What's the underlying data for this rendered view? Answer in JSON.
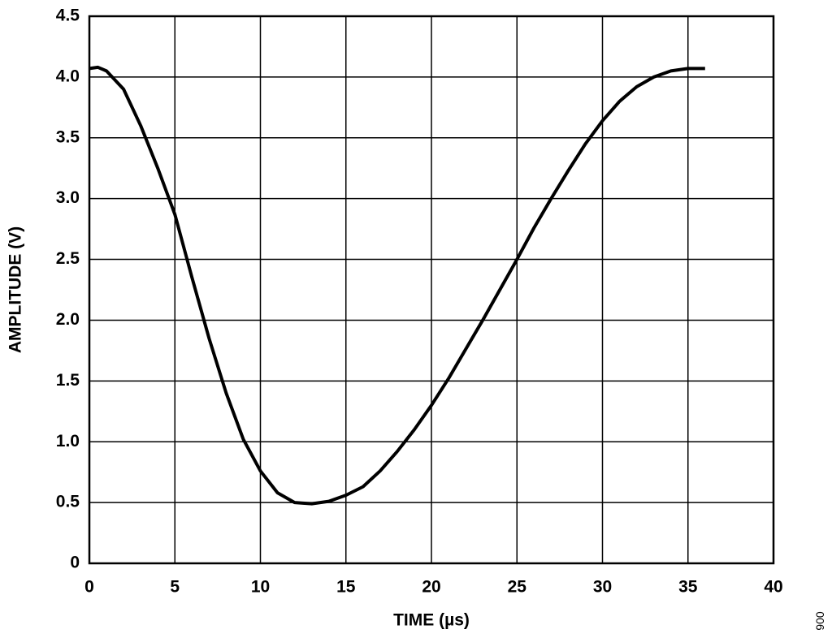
{
  "chart_data": {
    "type": "line",
    "xlabel": "TIME (µs)",
    "ylabel": "AMPLITUDE (V)",
    "figure_id": "006",
    "x": [
      0,
      0.5,
      1,
      2,
      3,
      4,
      5,
      6,
      7,
      8,
      9,
      10,
      11,
      12,
      13,
      14,
      15,
      16,
      17,
      18,
      19,
      20,
      21,
      22,
      23,
      24,
      25,
      26,
      27,
      28,
      29,
      30,
      31,
      32,
      33,
      34,
      35,
      36
    ],
    "series": [
      {
        "color": "#000000",
        "values": [
          4.07,
          4.08,
          4.05,
          3.9,
          3.6,
          3.25,
          2.87,
          2.35,
          1.85,
          1.4,
          1.02,
          0.76,
          0.58,
          0.5,
          0.49,
          0.51,
          0.56,
          0.63,
          0.76,
          0.92,
          1.1,
          1.3,
          1.52,
          1.76,
          2.0,
          2.25,
          2.5,
          2.76,
          3.0,
          3.23,
          3.45,
          3.64,
          3.8,
          3.92,
          4.0,
          4.05,
          4.07,
          4.07
        ]
      }
    ],
    "xlim": [
      0,
      40
    ],
    "xticks": [
      0,
      5,
      10,
      15,
      20,
      25,
      30,
      35,
      40
    ],
    "ylim": [
      0,
      4.5
    ],
    "yticks": [
      0,
      0.5,
      {
        "value": 1,
        "label": "1.0"
      },
      1.5,
      {
        "value": 2,
        "label": "2.0"
      },
      2.5,
      {
        "value": 3,
        "label": "3.0"
      },
      3.5,
      {
        "value": 4,
        "label": "4.0"
      },
      4.5
    ],
    "grid": true
  }
}
